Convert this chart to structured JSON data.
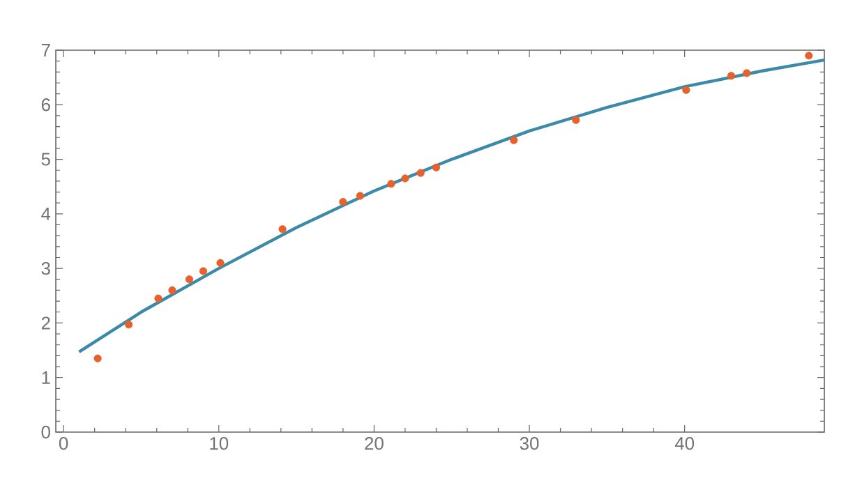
{
  "chart_data": {
    "type": "scatter",
    "xlim": [
      -0.5,
      49
    ],
    "ylim": [
      0,
      7
    ],
    "xticks": [
      0,
      10,
      20,
      30,
      40
    ],
    "yticks": [
      0,
      1,
      2,
      3,
      4,
      5,
      6,
      7
    ],
    "marker": "circle",
    "series": [
      {
        "color": "#e8612c",
        "x": [
          2.2,
          4.2,
          6.1,
          7,
          8.1,
          9,
          10.1,
          14.1,
          18,
          19.1,
          21.1,
          22,
          23,
          24,
          29,
          33,
          40.1,
          43,
          44,
          48
        ],
        "values": [
          1.35,
          1.97,
          2.45,
          2.6,
          2.8,
          2.95,
          3.1,
          3.72,
          4.22,
          4.33,
          4.55,
          4.65,
          4.75,
          4.85,
          5.35,
          5.72,
          6.27,
          6.53,
          6.58,
          6.9
        ]
      },
      {
        "type": "line",
        "color": "#3a8aa8",
        "marker": "none",
        "line_style": "solid",
        "x": [
          1,
          5,
          10,
          15,
          20,
          25,
          30,
          35,
          40,
          45,
          49
        ],
        "values": [
          1.47,
          2.2,
          3.0,
          3.75,
          4.42,
          5.0,
          5.52,
          5.95,
          6.33,
          6.62,
          6.82
        ]
      }
    ]
  }
}
